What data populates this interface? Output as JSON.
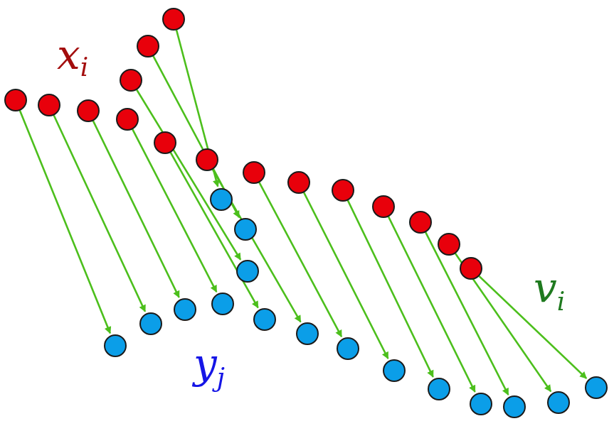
{
  "labels": {
    "source_main": "x",
    "source_sub": "i",
    "target_main": "y",
    "target_sub": "j",
    "vector_main": "v",
    "vector_sub": "i"
  },
  "colors": {
    "source_point": "#e8000b",
    "target_point": "#0b9ee8",
    "arrow": "#4cbf1c",
    "source_label": "#a30d0d",
    "target_label": "#1515e6",
    "vector_label": "#1f7a1f"
  },
  "icons": {
    "source_point": "red-circle-marker",
    "target_point": "blue-circle-marker",
    "arrow": "green-arrow"
  }
}
